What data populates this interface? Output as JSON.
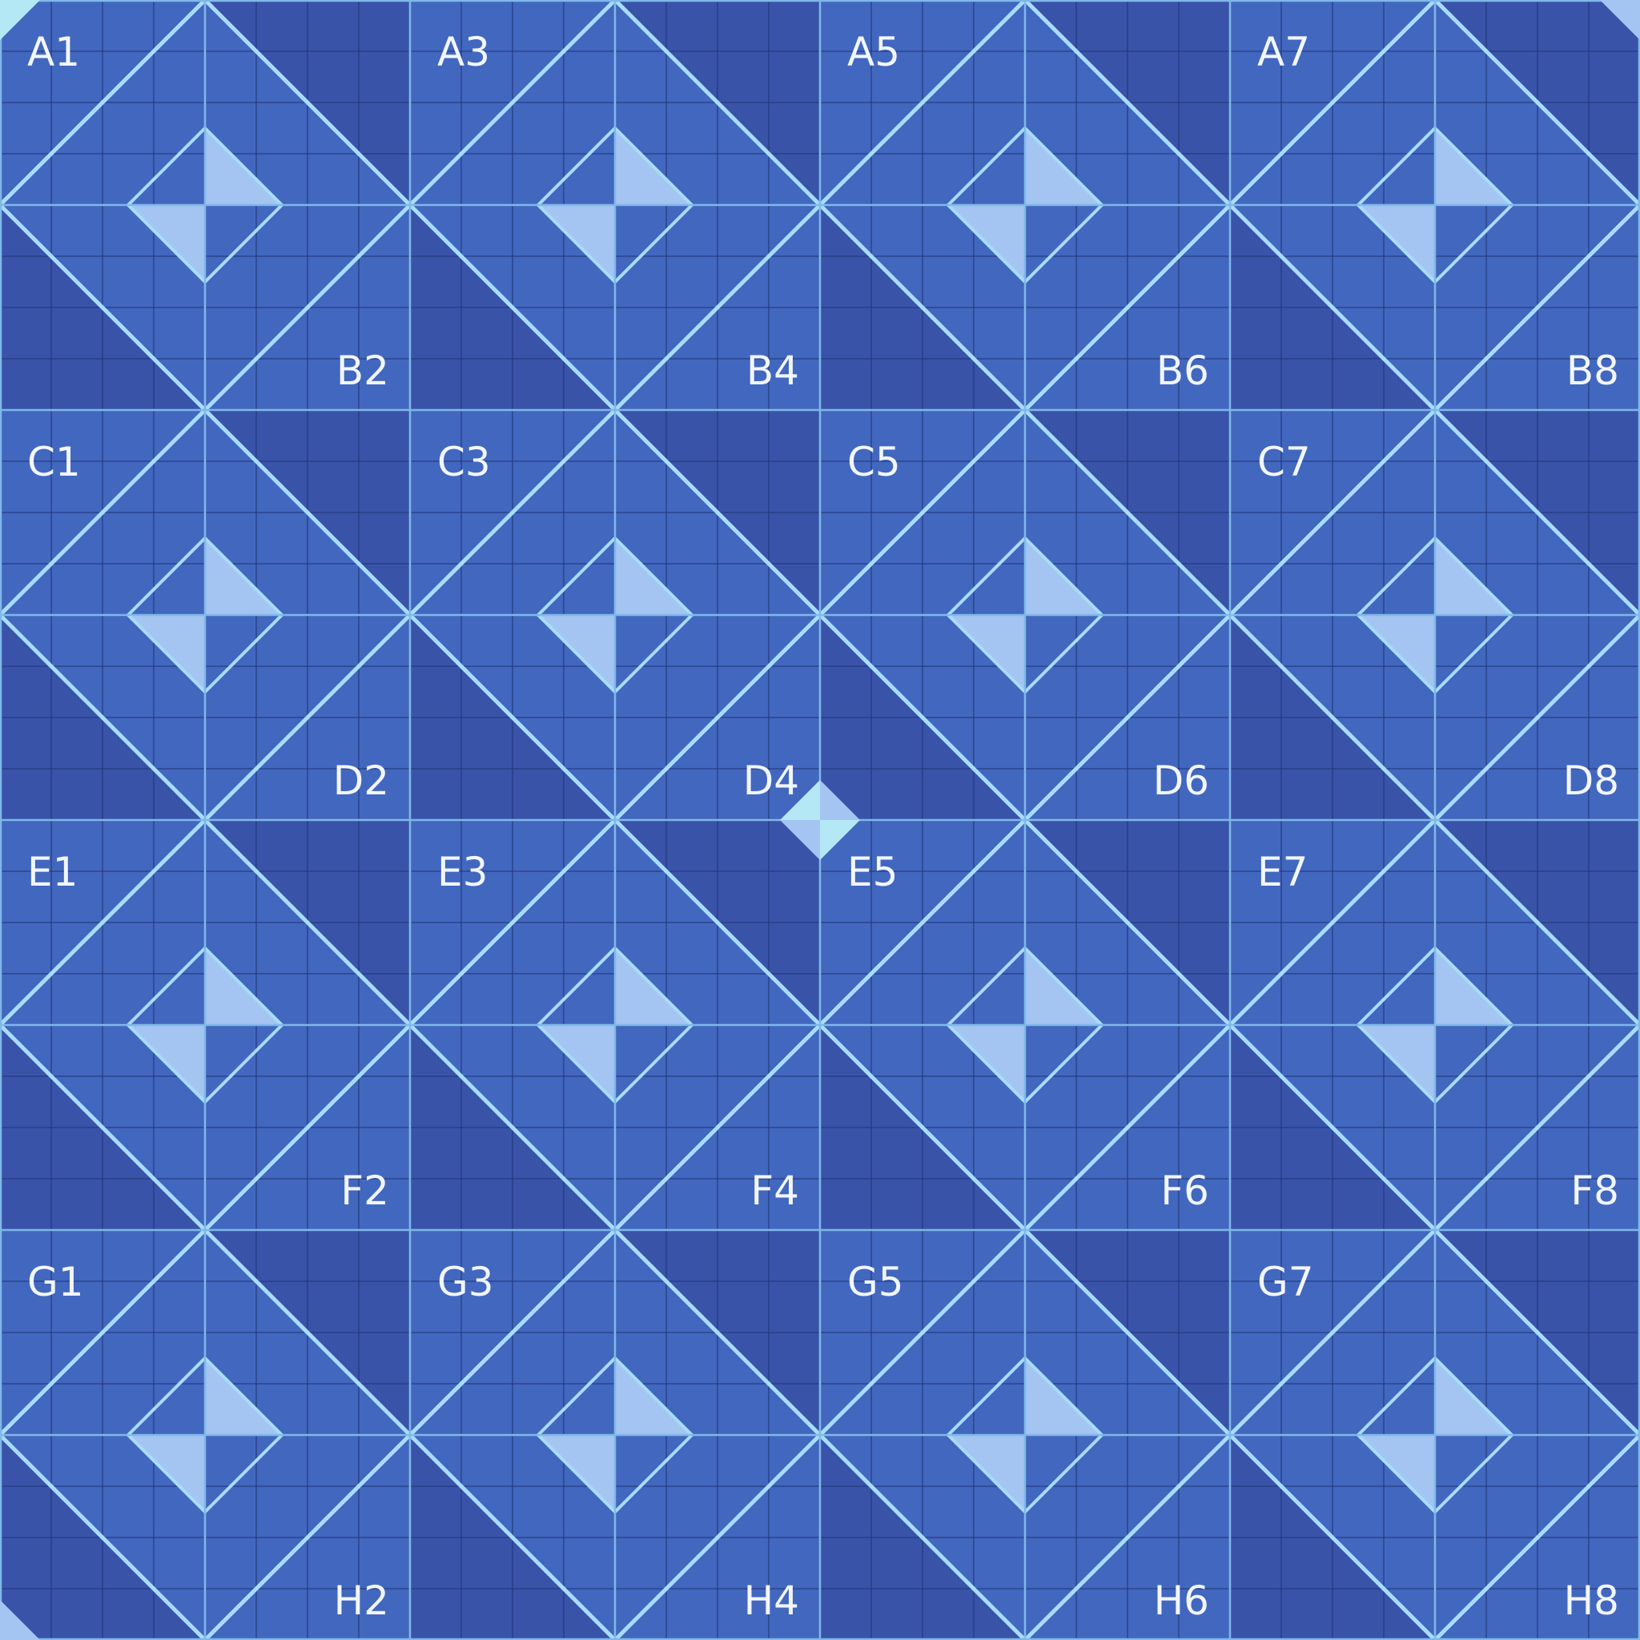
{
  "board": {
    "rows": [
      "A",
      "B",
      "C",
      "D",
      "E",
      "F",
      "G",
      "H"
    ],
    "cols": [
      "1",
      "2",
      "3",
      "4",
      "5",
      "6",
      "7",
      "8"
    ],
    "labels": [
      {
        "cell": "A1",
        "text": "A1",
        "corner": "top-left"
      },
      {
        "cell": "A3",
        "text": "A3",
        "corner": "top-left"
      },
      {
        "cell": "A5",
        "text": "A5",
        "corner": "top-left"
      },
      {
        "cell": "A7",
        "text": "A7",
        "corner": "top-left"
      },
      {
        "cell": "B2",
        "text": "B2",
        "corner": "bottom-right"
      },
      {
        "cell": "B4",
        "text": "B4",
        "corner": "bottom-right"
      },
      {
        "cell": "B6",
        "text": "B6",
        "corner": "bottom-right"
      },
      {
        "cell": "B8",
        "text": "B8",
        "corner": "bottom-right"
      },
      {
        "cell": "C1",
        "text": "C1",
        "corner": "top-left"
      },
      {
        "cell": "C3",
        "text": "C3",
        "corner": "top-left"
      },
      {
        "cell": "C5",
        "text": "C5",
        "corner": "top-left"
      },
      {
        "cell": "C7",
        "text": "C7",
        "corner": "top-left"
      },
      {
        "cell": "D2",
        "text": "D2",
        "corner": "bottom-right"
      },
      {
        "cell": "D4",
        "text": "D4",
        "corner": "bottom-right"
      },
      {
        "cell": "D6",
        "text": "D6",
        "corner": "bottom-right"
      },
      {
        "cell": "D8",
        "text": "D8",
        "corner": "bottom-right"
      },
      {
        "cell": "E1",
        "text": "E1",
        "corner": "top-left"
      },
      {
        "cell": "E3",
        "text": "E3",
        "corner": "top-left"
      },
      {
        "cell": "E5",
        "text": "E5",
        "corner": "top-left"
      },
      {
        "cell": "E7",
        "text": "E7",
        "corner": "top-left"
      },
      {
        "cell": "F2",
        "text": "F2",
        "corner": "bottom-right"
      },
      {
        "cell": "F4",
        "text": "F4",
        "corner": "bottom-right"
      },
      {
        "cell": "F6",
        "text": "F6",
        "corner": "bottom-right"
      },
      {
        "cell": "F8",
        "text": "F8",
        "corner": "bottom-right"
      },
      {
        "cell": "G1",
        "text": "G1",
        "corner": "top-left"
      },
      {
        "cell": "G3",
        "text": "G3",
        "corner": "top-left"
      },
      {
        "cell": "G5",
        "text": "G5",
        "corner": "top-left"
      },
      {
        "cell": "G7",
        "text": "G7",
        "corner": "top-left"
      },
      {
        "cell": "H2",
        "text": "H2",
        "corner": "bottom-right"
      },
      {
        "cell": "H4",
        "text": "H4",
        "corner": "bottom-right"
      },
      {
        "cell": "H6",
        "text": "H6",
        "corner": "bottom-right"
      },
      {
        "cell": "H8",
        "text": "H8",
        "corner": "bottom-right"
      }
    ],
    "colors": {
      "light_tile": "#4267bf",
      "dark_tile": "#3953a9",
      "accent_fill": "#a4c4f2",
      "center_accent": "#b5e8f5",
      "diagonal_line": "#a8dcff",
      "cell_border": "#7fb8e8",
      "fine_grid": "#22377a",
      "label_text": "#f2f6ff"
    },
    "icons": [
      "corner-marker-icon",
      "center-diamond-icon"
    ]
  }
}
